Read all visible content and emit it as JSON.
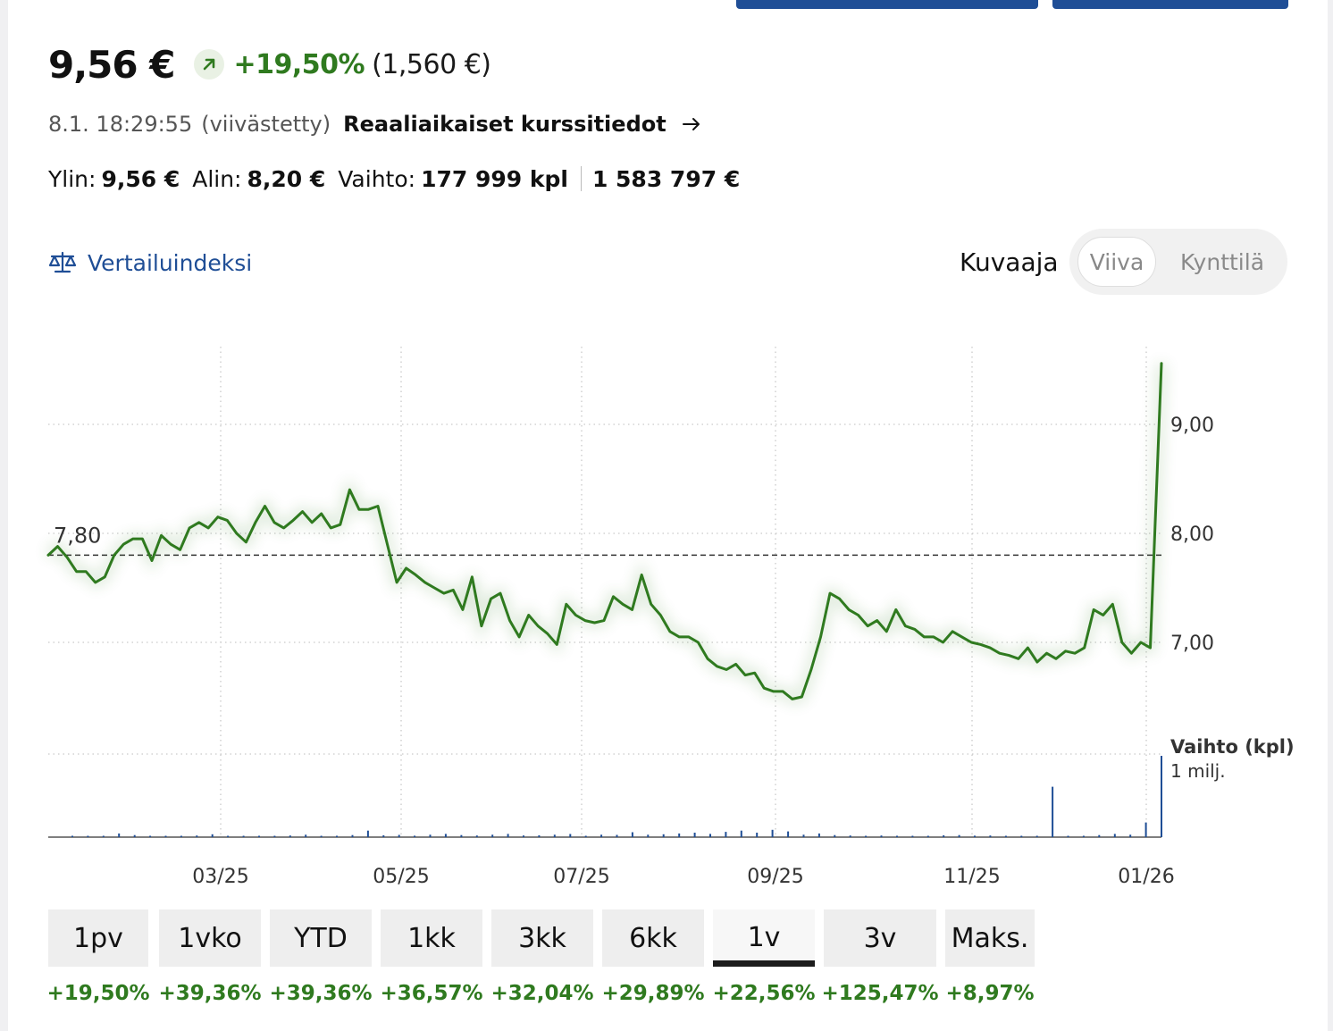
{
  "quote": {
    "price": "9,56 €",
    "change_pct": "+19,50%",
    "change_abs": "(1,560 €)",
    "direction_icon": "arrow-up-right-icon",
    "timestamp": "8.1. 18:29:55",
    "delay_note": "(viivästetty)",
    "realtime_link": "Reaaliaikaiset kurssitiedot",
    "high_label": "Ylin:",
    "high": "9,56 €",
    "low_label": "Alin:",
    "low": "8,20 €",
    "volume_label": "Vaihto:",
    "volume": "177 999 kpl",
    "turnover": "1 583 797 €"
  },
  "benchmark": {
    "label": "Vertailuindeksi",
    "icon": "balance-scale-icon"
  },
  "chart_type": {
    "label": "Kuvaaja",
    "options": [
      "Viiva",
      "Kynttilä"
    ],
    "selected": "Viiva"
  },
  "colors": {
    "up": "#2f7a1f",
    "link": "#1f4e96",
    "volume_bar": "#1f4e96",
    "reference_line": "#333333"
  },
  "chart_data": {
    "type": "line",
    "x_ticks": [
      "03/25",
      "05/25",
      "07/25",
      "09/25",
      "11/25",
      "01/26"
    ],
    "y_ticks": [
      "9,00",
      "8,00",
      "7,00"
    ],
    "ylim": [
      6.2,
      9.7
    ],
    "reference_value": 7.8,
    "reference_label": "7,80",
    "series": [
      {
        "values": [
          7.8,
          7.88,
          7.78,
          7.65,
          7.65,
          7.55,
          7.6,
          7.8,
          7.9,
          7.95,
          7.95,
          7.75,
          7.98,
          7.9,
          7.85,
          8.05,
          8.1,
          8.05,
          8.15,
          8.12,
          8.0,
          7.92,
          8.1,
          8.25,
          8.1,
          8.05,
          8.12,
          8.2,
          8.1,
          8.18,
          8.05,
          8.08,
          8.4,
          8.22,
          8.22,
          8.25,
          7.9,
          7.55,
          7.68,
          7.62,
          7.55,
          7.5,
          7.45,
          7.48,
          7.3,
          7.6,
          7.15,
          7.4,
          7.45,
          7.2,
          7.05,
          7.25,
          7.15,
          7.08,
          6.98,
          7.35,
          7.25,
          7.2,
          7.18,
          7.2,
          7.42,
          7.35,
          7.3,
          7.62,
          7.35,
          7.25,
          7.1,
          7.05,
          7.05,
          7.0,
          6.85,
          6.78,
          6.75,
          6.8,
          6.7,
          6.72,
          6.58,
          6.55,
          6.55,
          6.48,
          6.5,
          6.75,
          7.05,
          7.45,
          7.4,
          7.3,
          7.25,
          7.15,
          7.2,
          7.1,
          7.3,
          7.15,
          7.12,
          7.05,
          7.05,
          7.0,
          7.1,
          7.05,
          7.0,
          6.98,
          6.95,
          6.9,
          6.88,
          6.85,
          6.95,
          6.82,
          6.9,
          6.85,
          6.92,
          6.9,
          6.95,
          7.3,
          7.25,
          7.35,
          7.0,
          6.9,
          7.0,
          6.95,
          9.56
        ]
      }
    ],
    "volume_title": "Vaihto (kpl)",
    "volume_tick_label": "1 milj.",
    "volume_ylim": [
      0,
      1000000
    ],
    "volume": [
      10000,
      10000,
      15000,
      45000,
      25000,
      10000,
      10000,
      12000,
      20000,
      35000,
      12000,
      10000,
      12000,
      15000,
      20000,
      30000,
      15000,
      12000,
      25000,
      80000,
      22000,
      28000,
      18000,
      30000,
      40000,
      25000,
      20000,
      30000,
      40000,
      20000,
      22000,
      30000,
      38000,
      12000,
      30000,
      28000,
      60000,
      30000,
      35000,
      45000,
      55000,
      40000,
      65000,
      80000,
      55000,
      90000,
      70000,
      30000,
      45000,
      25000,
      20000,
      15000,
      20000,
      15000,
      12000,
      10000,
      22000,
      25000,
      18000,
      20000,
      15000,
      12000,
      15000,
      620000,
      10000,
      15000,
      25000,
      40000,
      30000,
      180000,
      1000000
    ]
  },
  "ranges": [
    {
      "label": "1pv",
      "change": "+19,50%"
    },
    {
      "label": "1vko",
      "change": "+39,36%"
    },
    {
      "label": "YTD",
      "change": "+39,36%"
    },
    {
      "label": "1kk",
      "change": "+36,57%"
    },
    {
      "label": "3kk",
      "change": "+32,04%"
    },
    {
      "label": "6kk",
      "change": "+29,89%"
    },
    {
      "label": "1v",
      "change": "+22,56%",
      "active": true
    },
    {
      "label": "3v",
      "change": "+125,47%"
    },
    {
      "label": "Maks.",
      "change": "+8,97%"
    }
  ]
}
